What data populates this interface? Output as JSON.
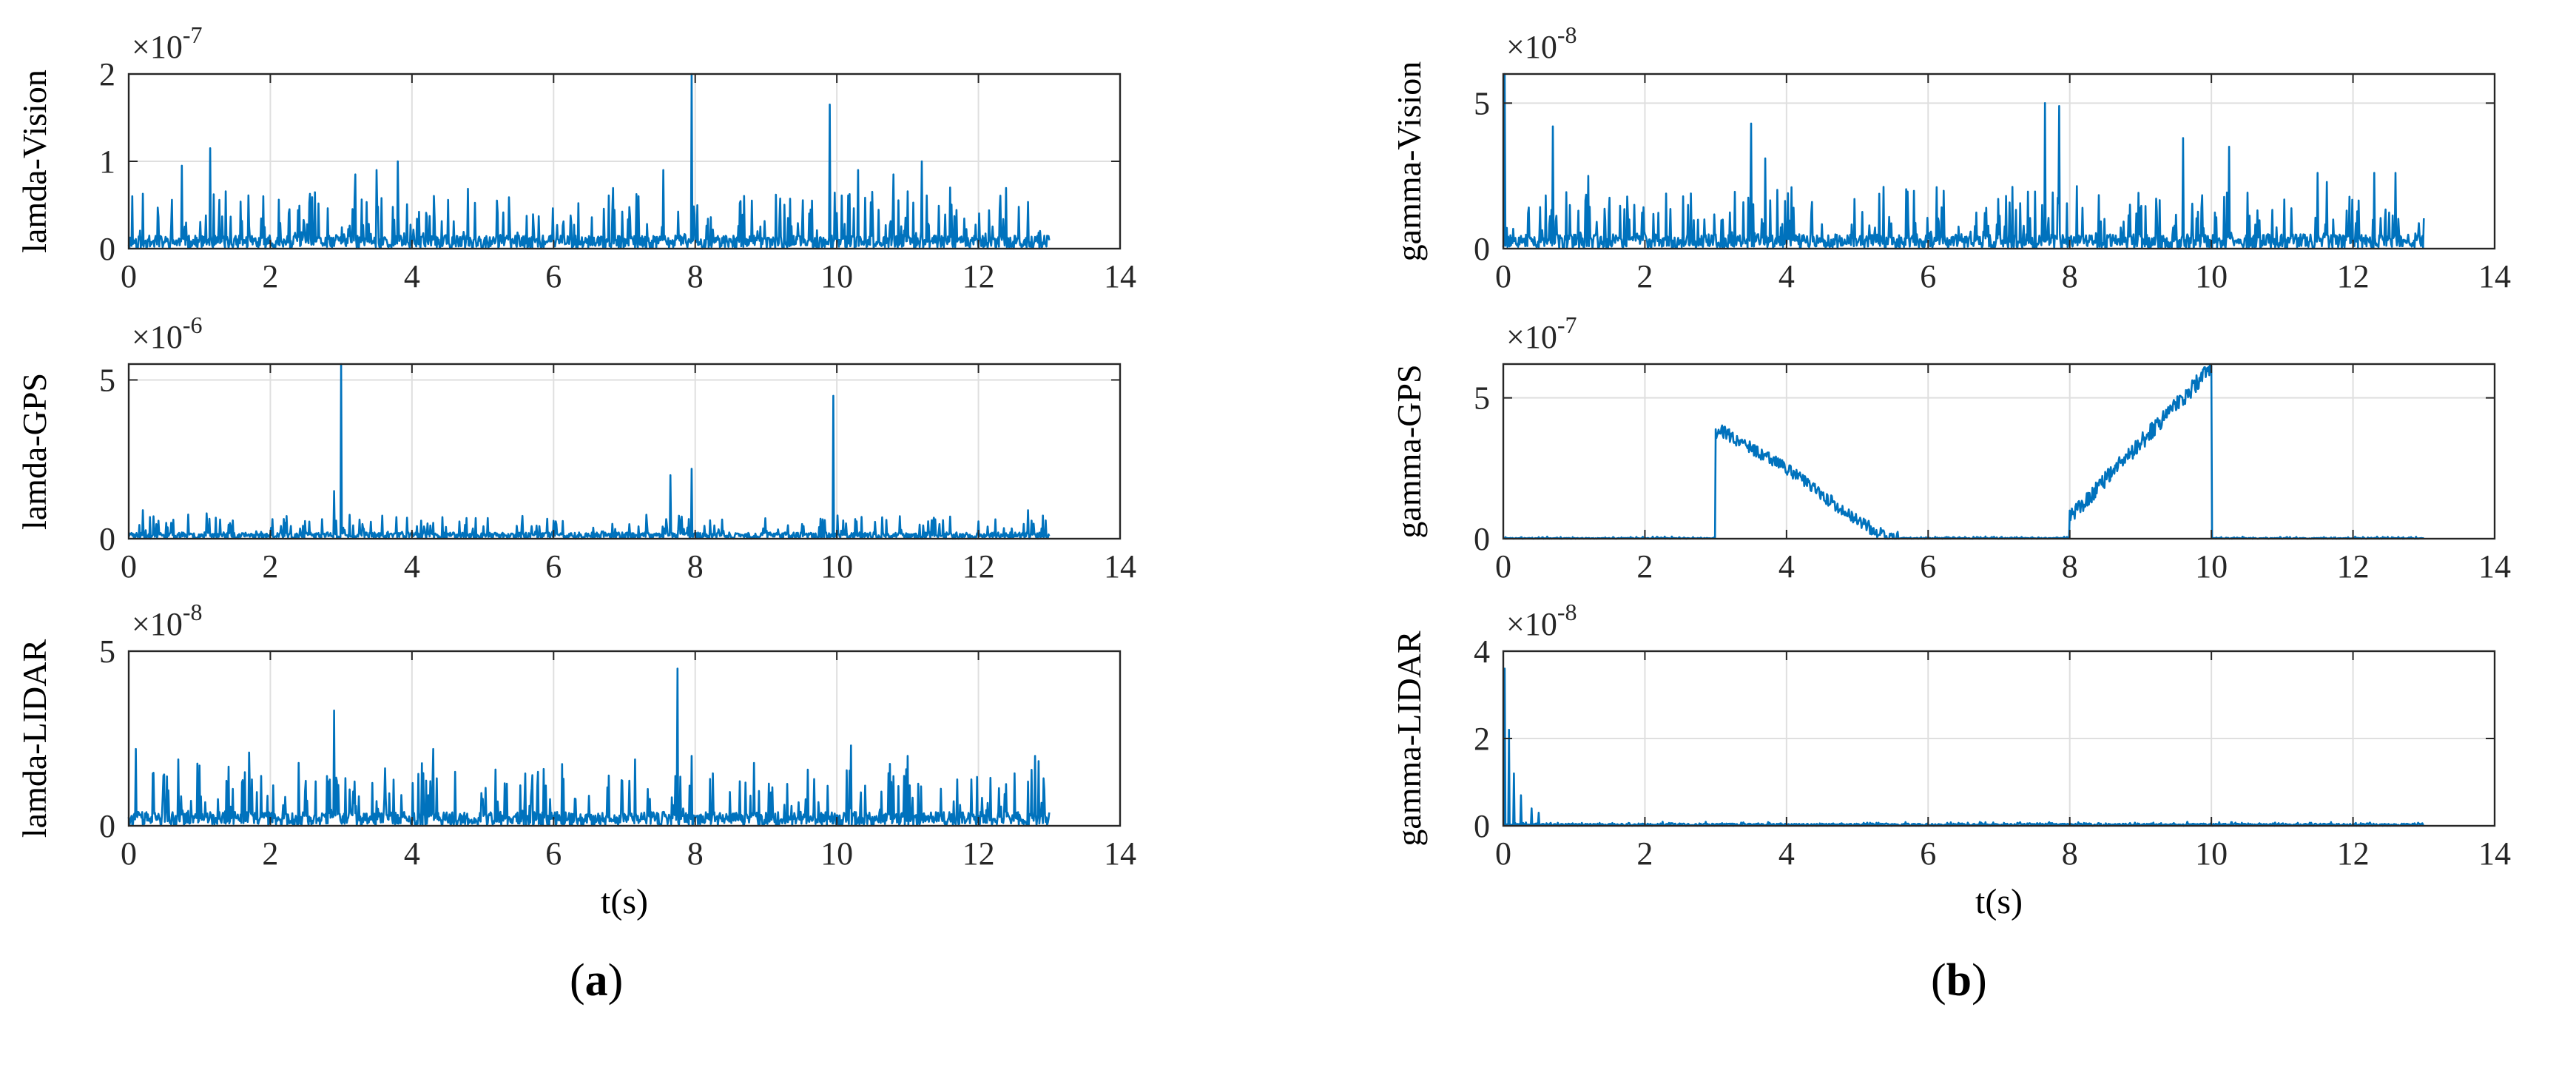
{
  "figure": {
    "captions": [
      {
        "open": "(",
        "letter": "a",
        "close": ")"
      },
      {
        "open": "(",
        "letter": "b",
        "close": ")"
      }
    ]
  },
  "chart_data": [
    {
      "type": "line",
      "panel": "a",
      "id": "lamda-vision",
      "ylabel": "lamda-Vision",
      "xlabel": "",
      "exponent_label": "×10",
      "exponent_power": "-7",
      "xlim": [
        0,
        14
      ],
      "ylim": [
        0,
        2
      ],
      "xticks": [
        0,
        2,
        4,
        6,
        8,
        10,
        12,
        14
      ],
      "yticks": [
        0,
        1,
        2
      ],
      "grid": true,
      "color": "#0072BD",
      "data_range": [
        0,
        13
      ],
      "baseline": 0.15,
      "noise_max": 0.55,
      "spikes": [
        [
          0.05,
          0.6
        ],
        [
          0.75,
          0.95
        ],
        [
          1.15,
          1.15
        ],
        [
          1.9,
          0.6
        ],
        [
          3.2,
          0.85
        ],
        [
          3.5,
          0.9
        ],
        [
          3.8,
          1.0
        ],
        [
          5.2,
          0.55
        ],
        [
          7.2,
          0.6
        ],
        [
          7.55,
          0.9
        ],
        [
          7.95,
          2.0
        ],
        [
          8.8,
          0.55
        ],
        [
          9.65,
          0.55
        ],
        [
          9.9,
          1.65
        ],
        [
          10.3,
          0.9
        ],
        [
          10.8,
          0.85
        ],
        [
          11.2,
          1.0
        ],
        [
          11.6,
          0.7
        ],
        [
          12.3,
          0.45
        ]
      ],
      "steps": [],
      "seed": 11
    },
    {
      "type": "line",
      "panel": "a",
      "id": "lamda-gps",
      "ylabel": "lamda-GPS",
      "xlabel": "",
      "exponent_label": "×10",
      "exponent_power": "-6",
      "xlim": [
        0,
        14
      ],
      "ylim": [
        0,
        5.5
      ],
      "xticks": [
        0,
        2,
        4,
        6,
        8,
        10,
        12,
        14
      ],
      "yticks": [
        0,
        5
      ],
      "grid": true,
      "color": "#0072BD",
      "data_range": [
        0,
        13
      ],
      "baseline": 0.2,
      "noise_max": 0.6,
      "spikes": [
        [
          0.2,
          0.9
        ],
        [
          1.1,
          0.8
        ],
        [
          2.9,
          1.5
        ],
        [
          3.0,
          5.5
        ],
        [
          4.3,
          0.5
        ],
        [
          7.65,
          2.0
        ],
        [
          7.95,
          2.2
        ],
        [
          9.95,
          4.5
        ],
        [
          11.6,
          0.7
        ],
        [
          12.7,
          0.9
        ]
      ],
      "steps": [],
      "seed": 23
    },
    {
      "type": "line",
      "panel": "a",
      "id": "lamda-lidar",
      "ylabel": "lamda-LIDAR",
      "xlabel": "t(s)",
      "exponent_label": "×10",
      "exponent_power": "-8",
      "xlim": [
        0,
        14
      ],
      "ylim": [
        0,
        5
      ],
      "xticks": [
        0,
        2,
        4,
        6,
        8,
        10,
        12,
        14
      ],
      "yticks": [
        0,
        5
      ],
      "grid": true,
      "color": "#0072BD",
      "data_range": [
        0,
        13
      ],
      "baseline": 0.4,
      "noise_max": 1.5,
      "spikes": [
        [
          0.1,
          2.2
        ],
        [
          0.7,
          1.9
        ],
        [
          1.7,
          2.1
        ],
        [
          2.4,
          1.8
        ],
        [
          2.9,
          3.3
        ],
        [
          4.3,
          2.2
        ],
        [
          5.6,
          1.5
        ],
        [
          7.15,
          1.9
        ],
        [
          7.75,
          4.5
        ],
        [
          7.95,
          2.0
        ],
        [
          10.2,
          2.3
        ],
        [
          11.0,
          2.0
        ],
        [
          12.8,
          2.0
        ]
      ],
      "steps": [],
      "seed": 37
    },
    {
      "type": "line",
      "panel": "b",
      "id": "gamma-vision",
      "ylabel": "gamma-Vision",
      "xlabel": "",
      "exponent_label": "×10",
      "exponent_power": "-8",
      "xlim": [
        0,
        14
      ],
      "ylim": [
        0,
        6
      ],
      "xticks": [
        0,
        2,
        4,
        6,
        8,
        10,
        12,
        14
      ],
      "yticks": [
        0,
        5
      ],
      "grid": true,
      "color": "#0072BD",
      "data_range": [
        0,
        13
      ],
      "baseline": 0.5,
      "noise_max": 1.8,
      "spikes": [
        [
          0.02,
          6.0
        ],
        [
          0.7,
          4.2
        ],
        [
          1.2,
          2.5
        ],
        [
          3.5,
          4.3
        ],
        [
          3.7,
          3.1
        ],
        [
          7.65,
          5.0
        ],
        [
          7.85,
          4.9
        ],
        [
          9.6,
          3.8
        ],
        [
          10.25,
          3.5
        ],
        [
          11.5,
          2.6
        ],
        [
          12.3,
          2.6
        ],
        [
          12.6,
          2.6
        ]
      ],
      "steps": [],
      "seed": 53
    },
    {
      "type": "line",
      "panel": "b",
      "id": "gamma-gps",
      "ylabel": "gamma-GPS",
      "xlabel": "",
      "exponent_label": "×10",
      "exponent_power": "-7",
      "xlim": [
        0,
        14
      ],
      "ylim": [
        0,
        6.2
      ],
      "xticks": [
        0,
        2,
        4,
        6,
        8,
        10,
        12,
        14
      ],
      "yticks": [
        0,
        5
      ],
      "grid": true,
      "color": "#0072BD",
      "data_range": [
        0,
        13
      ],
      "baseline": 0.03,
      "noise_max": 0.05,
      "spikes": [],
      "steps": [
        {
          "t": [
            3.0,
            3.1,
            4.0,
            4.8,
            5.3,
            5.6
          ],
          "v": [
            3.8,
            3.8,
            2.5,
            1.0,
            0.2,
            0.0
          ],
          "noise": 0.45
        },
        {
          "t": [
            8.0,
            8.05,
            9.0,
            9.9,
            10.0
          ],
          "v": [
            0.8,
            0.9,
            3.4,
            5.8,
            6.0
          ],
          "noise": 0.6
        }
      ],
      "seed": 71
    },
    {
      "type": "line",
      "panel": "b",
      "id": "gamma-lidar",
      "ylabel": "gamma-LIDAR",
      "xlabel": "t(s)",
      "exponent_label": "×10",
      "exponent_power": "-8",
      "xlim": [
        0,
        14
      ],
      "ylim": [
        0,
        4
      ],
      "xticks": [
        0,
        2,
        4,
        6,
        8,
        10,
        12,
        14
      ],
      "yticks": [
        0,
        2,
        4
      ],
      "grid": true,
      "color": "#0072BD",
      "data_range": [
        0,
        13
      ],
      "baseline": 0.05,
      "noise_max": 0.05,
      "spikes": [
        [
          0.02,
          3.6
        ],
        [
          0.08,
          2.2
        ],
        [
          0.15,
          1.2
        ],
        [
          0.25,
          0.7
        ],
        [
          0.4,
          0.4
        ],
        [
          0.5,
          0.3
        ]
      ],
      "steps": [],
      "seed": 89
    }
  ]
}
